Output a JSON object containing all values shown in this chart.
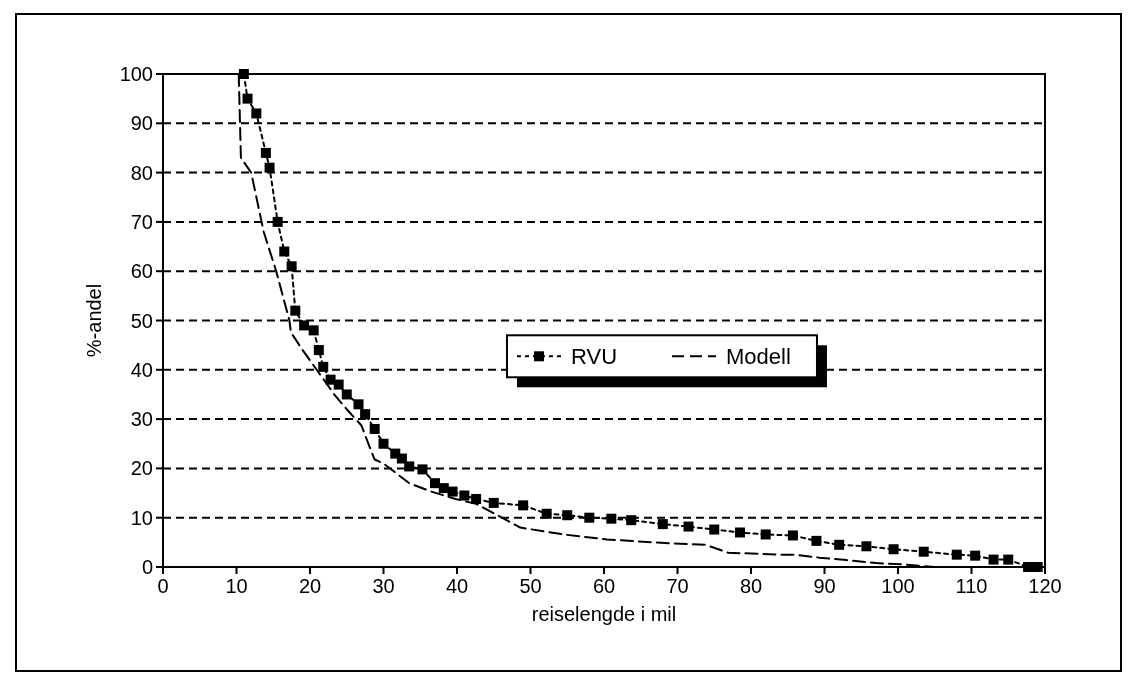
{
  "chart_data": {
    "type": "line",
    "xlabel": "reiselengde i mil",
    "ylabel": "%-andel",
    "xlim": [
      0,
      120
    ],
    "ylim": [
      0,
      100
    ],
    "xticks": [
      0,
      10,
      20,
      30,
      40,
      50,
      60,
      70,
      80,
      90,
      100,
      110,
      120
    ],
    "yticks": [
      0,
      10,
      20,
      30,
      40,
      50,
      60,
      70,
      80,
      90,
      100
    ],
    "grid": "y",
    "legend": "right",
    "series": [
      {
        "name": "RVU",
        "color": "#000000",
        "marker": "square",
        "line_style": "dotted",
        "x": [
          11,
          11.5,
          12.7,
          14,
          14.5,
          15.6,
          16.5,
          17.5,
          18,
          19.2,
          20.5,
          21.2,
          21.8,
          22.8,
          23.9,
          25,
          26.6,
          27.5,
          28.8,
          30,
          31.6,
          32.5,
          33.5,
          35.3,
          37,
          38.2,
          39.4,
          41,
          42.6,
          45,
          49,
          52.2,
          55,
          58,
          61,
          63.7,
          68,
          71.5,
          75,
          78.5,
          82,
          85.7,
          88.9,
          92,
          95.7,
          99.4,
          103.5,
          108,
          110.5,
          113,
          115,
          117.7,
          119
        ],
        "values": [
          100,
          95,
          92,
          84,
          81,
          70,
          64,
          61,
          52,
          49,
          48,
          44,
          40.6,
          38,
          37,
          35,
          33,
          31,
          28,
          25,
          23,
          22,
          20.4,
          19.8,
          17,
          16,
          15.3,
          14.5,
          13.8,
          13,
          12.5,
          10.8,
          10.5,
          10,
          9.8,
          9.5,
          8.7,
          8.2,
          7.6,
          7,
          6.6,
          6.4,
          5.3,
          4.5,
          4.2,
          3.6,
          3.1,
          2.5,
          2.3,
          1.5,
          1.5,
          0,
          0
        ]
      },
      {
        "name": "Modell",
        "color": "#000000",
        "marker": "none",
        "line_style": "dashed",
        "x": [
          10.3,
          10.6,
          12,
          13.7,
          15.4,
          17.2,
          17.4,
          19,
          21.2,
          23.4,
          25,
          27,
          28.2,
          28.8,
          30,
          33.5,
          36.5,
          39.8,
          42.6,
          45.5,
          48.6,
          54.5,
          60.4,
          66.5,
          73.8,
          76.9,
          83.8,
          86,
          89.3,
          93,
          97,
          101,
          105,
          115
        ],
        "values": [
          100,
          83,
          80,
          68,
          60,
          50,
          47.6,
          44,
          39.4,
          34.8,
          32,
          28.7,
          24,
          21.8,
          21,
          17,
          15.3,
          13.8,
          12.8,
          10.5,
          8,
          6.6,
          5.6,
          5,
          4.5,
          2.9,
          2.5,
          2.5,
          1.9,
          1.4,
          0.8,
          0.5,
          0,
          0
        ]
      }
    ]
  }
}
